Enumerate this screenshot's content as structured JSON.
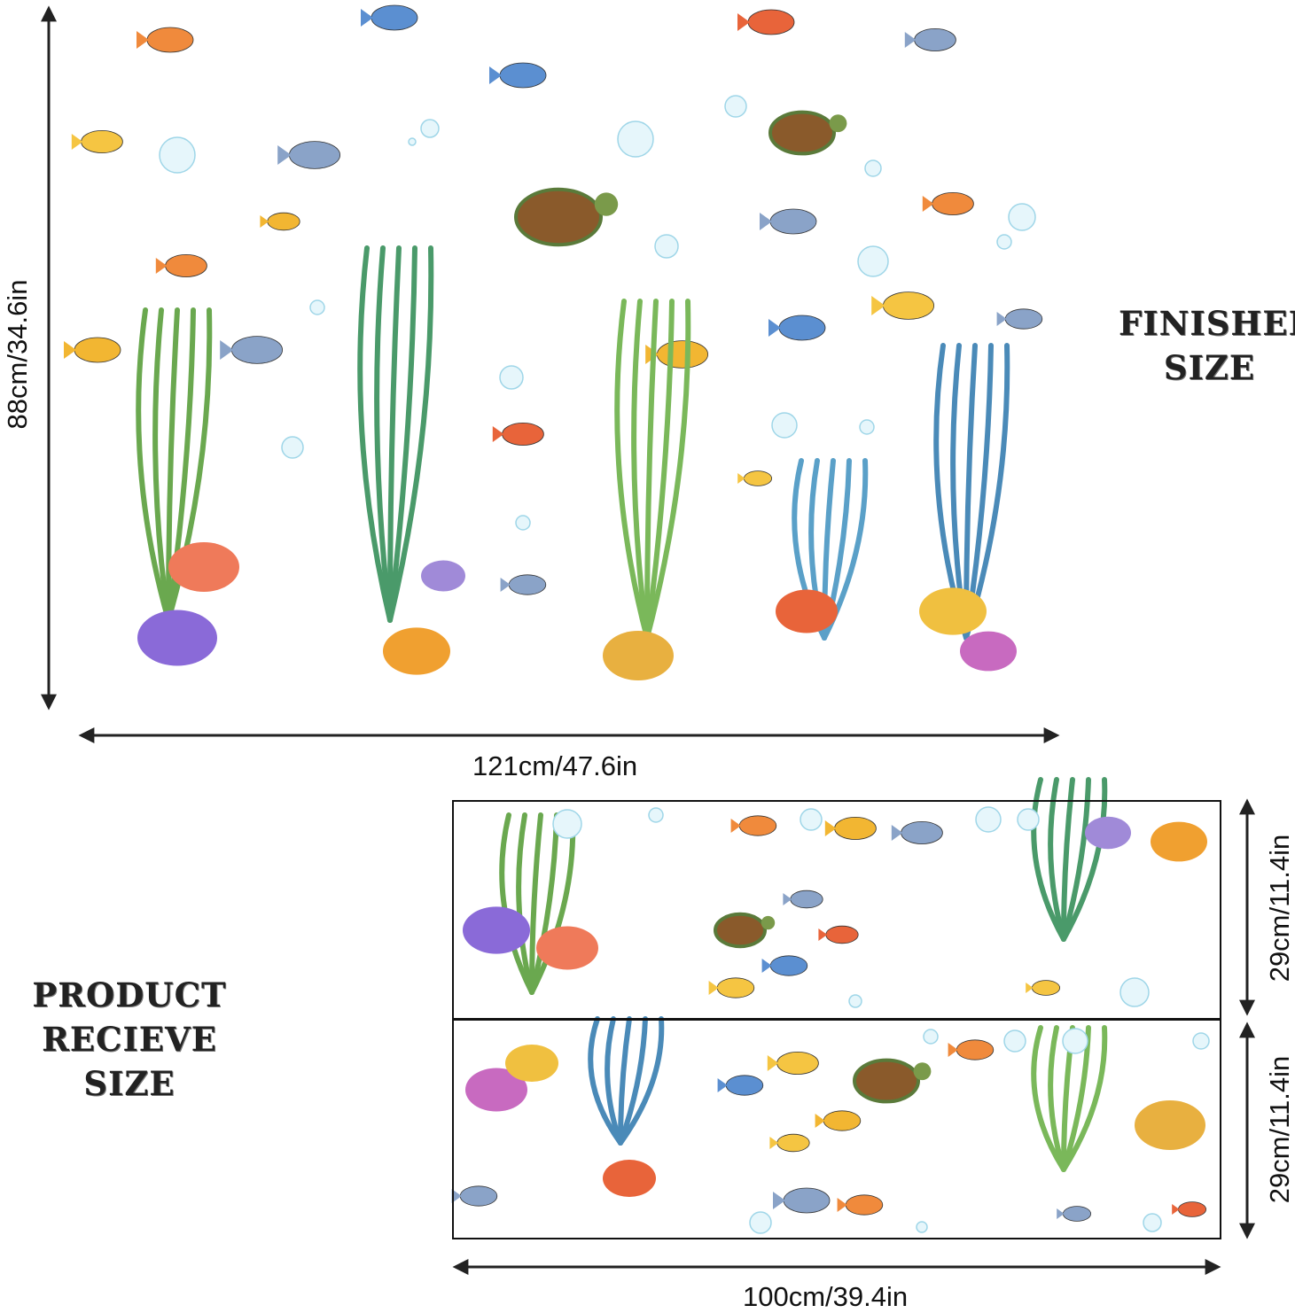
{
  "finished": {
    "title_line1": "FINISHED",
    "title_line2": "SIZE",
    "height_label": "88cm/34.6in",
    "width_label": "121cm/47.6in"
  },
  "received": {
    "title_line1": "PRODUCT",
    "title_line2": "RECIEVE SIZE",
    "sheet1_height_label": "29cm/11.4in",
    "sheet2_height_label": "29cm/11.4in",
    "width_label": "100cm/39.4in"
  }
}
